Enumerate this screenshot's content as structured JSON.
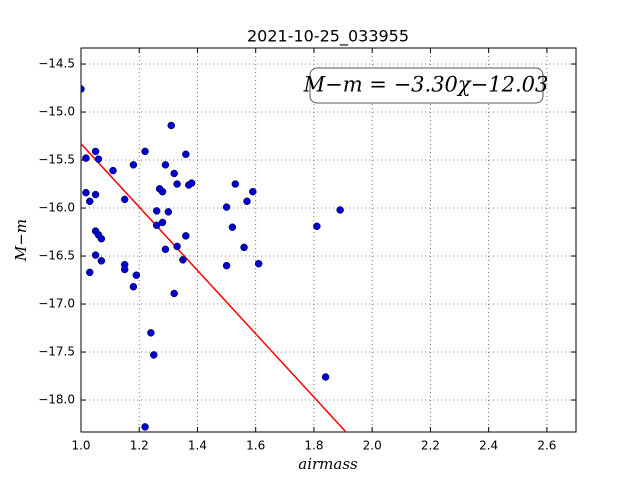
{
  "chart_data": {
    "type": "scatter",
    "title": "2021-10-25_033955",
    "x_label": "airmass",
    "y_label": "M−m",
    "annotation": "M−m = −3.30χ−12.03",
    "color": "#0000cc",
    "grid": true,
    "x": [
      1.0,
      1.017,
      1.017,
      1.03,
      1.03,
      1.05,
      1.05,
      1.06,
      1.05,
      1.06,
      1.07,
      1.05,
      1.07,
      1.11,
      1.15,
      1.15,
      1.15,
      1.18,
      1.19,
      1.18,
      1.22,
      1.24,
      1.25,
      1.22,
      1.28,
      1.27,
      1.26,
      1.26,
      1.28,
      1.29,
      1.3,
      1.29,
      1.31,
      1.32,
      1.33,
      1.36,
      1.37,
      1.38,
      1.36,
      1.33,
      1.35,
      1.32,
      1.5,
      1.53,
      1.52,
      1.57,
      1.59,
      1.56,
      1.5,
      1.61,
      1.81,
      1.89,
      1.84
    ],
    "values": [
      -14.76,
      -15.48,
      -15.84,
      -15.93,
      -16.67,
      -15.86,
      -15.41,
      -15.49,
      -16.24,
      -16.28,
      -16.32,
      -16.49,
      -16.55,
      -15.61,
      -15.91,
      -16.59,
      -16.64,
      -15.55,
      -16.7,
      -16.82,
      -15.41,
      -17.3,
      -17.53,
      -18.28,
      -15.83,
      -15.8,
      -16.03,
      -16.18,
      -16.15,
      -15.55,
      -16.04,
      -16.43,
      -15.14,
      -15.64,
      -15.75,
      -15.44,
      -15.76,
      -15.74,
      -16.29,
      -16.4,
      -16.54,
      -16.89,
      -15.99,
      -15.75,
      -16.2,
      -15.93,
      -15.83,
      -16.41,
      -16.6,
      -16.58,
      -16.19,
      -16.02,
      -17.76
    ],
    "fit_line": {
      "x": [
        1.0,
        1.91
      ],
      "values": [
        -15.33,
        -18.333
      ],
      "color": "#ff0000"
    },
    "xlim": [
      1.0,
      2.7
    ],
    "xticks": [
      {
        "value": 1.0,
        "label": "1.0"
      },
      {
        "value": 1.2,
        "label": "1.2"
      },
      {
        "value": 1.4,
        "label": "1.4"
      },
      {
        "value": 1.6,
        "label": "1.6"
      },
      {
        "value": 1.8,
        "label": "1.8"
      },
      {
        "value": 2.0,
        "label": "2.0"
      },
      {
        "value": 2.2,
        "label": "2.2"
      },
      {
        "value": 2.4,
        "label": "2.4"
      },
      {
        "value": 2.6,
        "label": "2.6"
      }
    ],
    "ylim": [
      -18.333,
      -14.333
    ],
    "yticks": [
      {
        "value": -14.5,
        "label": "−14.5"
      },
      {
        "value": -15.0,
        "label": "−15.0"
      },
      {
        "value": -15.5,
        "label": "−15.5"
      },
      {
        "value": -16.0,
        "label": "−16.0"
      },
      {
        "value": -16.5,
        "label": "−16.5"
      },
      {
        "value": -17.0,
        "label": "−17.0"
      },
      {
        "value": -17.5,
        "label": "−17.5"
      },
      {
        "value": -18.0,
        "label": "−18.0"
      }
    ]
  }
}
